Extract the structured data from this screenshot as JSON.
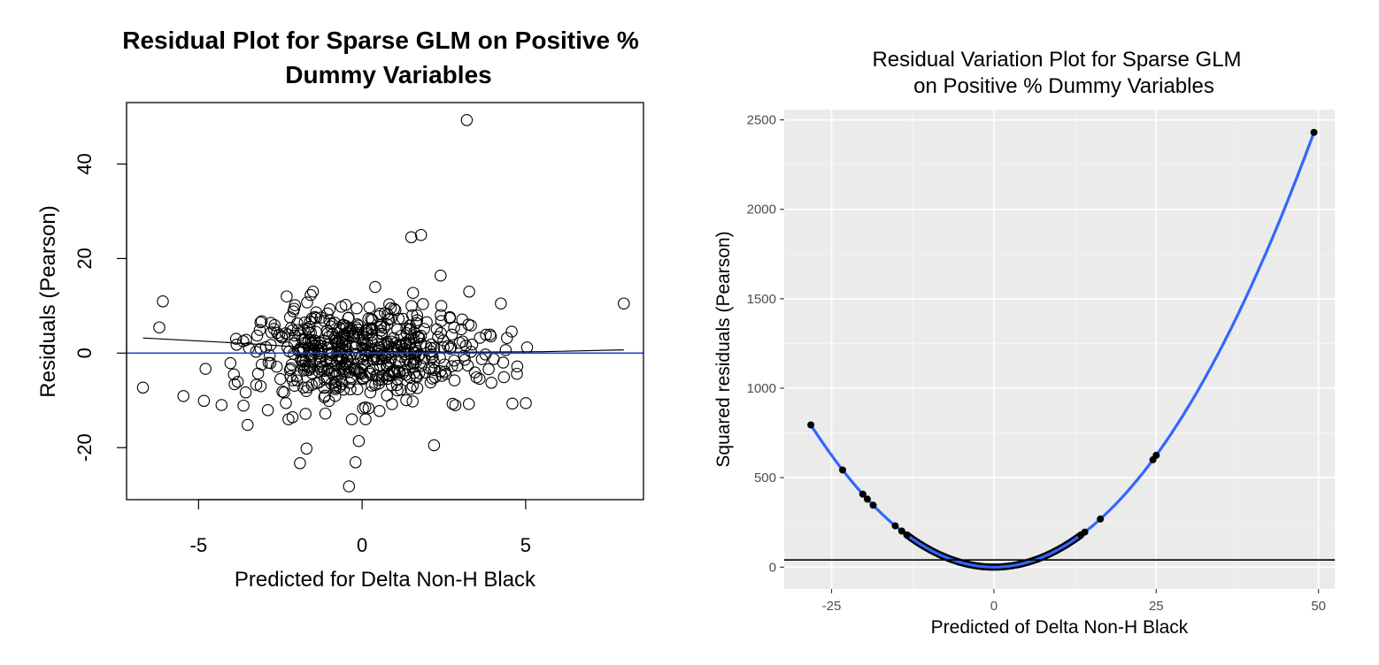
{
  "chart_data": [
    {
      "type": "scatter",
      "title": [
        "Residual Plot for Sparse GLM on Positive %",
        "Dummy Variables"
      ],
      "xlabel": "Predicted for Delta Non-H Black",
      "ylabel": "Residuals (Pearson)",
      "xlim": [
        -7.2,
        8.6
      ],
      "ylim": [
        -31,
        53
      ],
      "xticks": [
        -5,
        0,
        5
      ],
      "xtick_labels": [
        "-5",
        "0",
        "5"
      ],
      "yticks": [
        -20,
        0,
        20,
        40
      ],
      "ytick_labels": [
        "-20",
        "0",
        "20",
        "40"
      ],
      "grid": false,
      "reference_line": {
        "y": 0,
        "color": "#2b3fe0"
      },
      "smooth_line": [
        [
          -6.7,
          3.2
        ],
        [
          -4,
          2.2
        ],
        [
          -1,
          0.9
        ],
        [
          1,
          0.3
        ],
        [
          3,
          0.2
        ],
        [
          5.5,
          0.3
        ],
        [
          8,
          0.7
        ]
      ],
      "outliers": [
        [
          3.2,
          49.3
        ],
        [
          1.5,
          24.5
        ],
        [
          1.8,
          25
        ],
        [
          -0.4,
          -28.2
        ],
        [
          2.2,
          -19.5
        ],
        [
          -1.9,
          -23.3
        ],
        [
          -1.7,
          -20.2
        ],
        [
          -0.2,
          -23.1
        ],
        [
          -6.7,
          -7.3
        ],
        [
          8,
          10.5
        ],
        [
          -3.5,
          -15.2
        ],
        [
          -0.1,
          -18.6
        ],
        [
          2.4,
          16.4
        ],
        [
          0.4,
          14
        ]
      ],
      "cloud": {
        "count": 560,
        "x_center": 0.1,
        "x_spread": 1.9,
        "y_spread": 5.2,
        "seed": 7
      },
      "point_color": "#000000"
    },
    {
      "type": "line",
      "title": [
        "Residual Variation Plot for Sparse GLM",
        "on Positive % Dummy Variables"
      ],
      "xlabel": "Predicted of Delta Non-H Black",
      "ylabel": "Squared residuals (Pearson)",
      "xlim": [
        -32.3,
        52.5
      ],
      "ylim": [
        -122,
        2557
      ],
      "xticks": [
        -25,
        0,
        25,
        50
      ],
      "xtick_labels": [
        "-25",
        "0",
        "25",
        "50"
      ],
      "yticks": [
        0,
        500,
        1000,
        1500,
        2000,
        2500
      ],
      "ytick_labels": [
        "0",
        "500",
        "1000",
        "1500",
        "2000",
        "2500"
      ],
      "grid": true,
      "background": "#ebebeb",
      "series": [
        {
          "points": [
            [
              -28.2,
              795
            ],
            [
              -23.3,
              543
            ],
            [
              -20.2,
              408
            ],
            [
              -19.5,
              380
            ],
            [
              -18.6,
              346
            ],
            [
              -15.2,
              231
            ],
            [
              -14.2,
              202
            ],
            [
              -13.4,
              180
            ],
            [
              13.4,
              180
            ],
            [
              14.0,
              196
            ],
            [
              16.4,
              269
            ],
            [
              24.5,
              600
            ],
            [
              25.0,
              625
            ],
            [
              49.3,
              2430
            ]
          ]
        }
      ],
      "smooth_curve": "y = x^2",
      "curve_color": "#3366ff",
      "hline": {
        "y": 40,
        "color": "#000000"
      }
    }
  ]
}
